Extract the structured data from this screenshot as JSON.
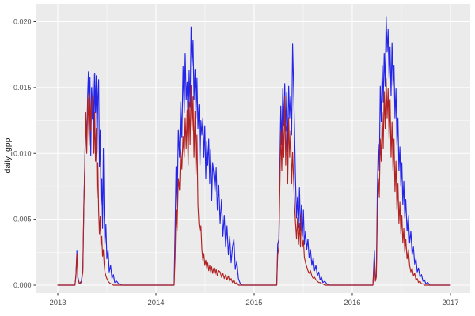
{
  "chart_data": {
    "type": "line",
    "title": "",
    "xlabel": "",
    "ylabel": "daily_gpp",
    "legend": "none",
    "grid": "ggplot2 gray panel, white major and minor gridlines",
    "x_ticks": [
      2013,
      2014,
      2015,
      2016,
      2017
    ],
    "x_tick_labels": [
      "2013",
      "2014",
      "2015",
      "2016",
      "2017"
    ],
    "y_ticks": [
      0.0,
      0.005,
      0.01,
      0.015,
      0.02
    ],
    "y_tick_labels": [
      "0.000",
      "0.005",
      "0.010",
      "0.015",
      "0.020"
    ],
    "xlim": [
      2012.782,
      2017.202
    ],
    "ylim": [
      -0.0006,
      0.02135
    ],
    "theme": {
      "panel_bg": "#EBEBEB",
      "grid_major": "#FFFFFF",
      "grid_minor": "#FFFFFF",
      "outer_bg": "#FFFFFF",
      "axis_text": "#4D4D4D",
      "axis_title": "#1A1A1A",
      "tick_mark": "#333333"
    },
    "series": [
      {
        "name": "gpp-series-blue",
        "color": "#2525E8",
        "column": 1
      },
      {
        "name": "gpp-series-firebrick",
        "color": "#B22222",
        "column": 2
      }
    ],
    "columns": [
      "year_decimal",
      "blue_daily_gpp",
      "firebrick_daily_gpp"
    ],
    "points": [
      [
        2013.0,
        0,
        0
      ],
      [
        2013.12,
        0,
        0
      ],
      [
        2013.175,
        0,
        0
      ],
      [
        2013.185,
        0.0008,
        0.0007
      ],
      [
        2013.195,
        0.0026,
        0.0024
      ],
      [
        2013.205,
        0.0006,
        0.0005
      ],
      [
        2013.22,
        0.0001,
        0.0001
      ],
      [
        2013.24,
        0.0003,
        0.0002
      ],
      [
        2013.255,
        0.0012,
        0.001
      ],
      [
        2013.265,
        0.006,
        0.0058
      ],
      [
        2013.275,
        0.0092,
        0.009
      ],
      [
        2013.285,
        0.0128,
        0.0131
      ],
      [
        2013.295,
        0.011,
        0.01
      ],
      [
        2013.305,
        0.0146,
        0.0142
      ],
      [
        2013.312,
        0.0162,
        0.0128
      ],
      [
        2013.32,
        0.0121,
        0.0106
      ],
      [
        2013.328,
        0.0158,
        0.0145
      ],
      [
        2013.336,
        0.0098,
        0.0117
      ],
      [
        2013.344,
        0.015,
        0.0136
      ],
      [
        2013.352,
        0.0126,
        0.0143
      ],
      [
        2013.36,
        0.016,
        0.0122
      ],
      [
        2013.368,
        0.0108,
        0.01
      ],
      [
        2013.376,
        0.0161,
        0.0131
      ],
      [
        2013.384,
        0.0131,
        0.0094
      ],
      [
        2013.392,
        0.0159,
        0.0119
      ],
      [
        2013.4,
        0.01,
        0.0066
      ],
      [
        2013.408,
        0.0143,
        0.0093
      ],
      [
        2013.416,
        0.0156,
        0.0057
      ],
      [
        2013.424,
        0.009,
        0.0039
      ],
      [
        2013.432,
        0.0118,
        0.0052
      ],
      [
        2013.44,
        0.0061,
        0.003
      ],
      [
        2013.448,
        0.0081,
        0.0037
      ],
      [
        2013.456,
        0.0043,
        0.0022
      ],
      [
        2013.464,
        0.0104,
        0.0027
      ],
      [
        2013.472,
        0.0054,
        0.0016
      ],
      [
        2013.48,
        0.0031,
        0.001
      ],
      [
        2013.49,
        0.0046,
        0.0007
      ],
      [
        2013.5,
        0.002,
        0.0005
      ],
      [
        2013.512,
        0.0027,
        0.0003
      ],
      [
        2013.524,
        0.001,
        0.0002
      ],
      [
        2013.538,
        0.0015,
        0.0001
      ],
      [
        2013.552,
        0.0005,
        0.0001
      ],
      [
        2013.566,
        0.0008,
        0.0
      ],
      [
        2013.58,
        0.0002,
        0
      ],
      [
        2013.6,
        0.0003,
        0
      ],
      [
        2013.62,
        0.0001,
        0
      ],
      [
        2013.65,
        0,
        0
      ],
      [
        2013.8,
        0,
        0
      ],
      [
        2014.0,
        0,
        0
      ],
      [
        2014.15,
        0,
        0
      ],
      [
        2014.185,
        0,
        0
      ],
      [
        2014.195,
        0.0042,
        0.0021
      ],
      [
        2014.205,
        0.009,
        0.0057
      ],
      [
        2014.215,
        0.0054,
        0.0041
      ],
      [
        2014.228,
        0.0118,
        0.0081
      ],
      [
        2014.24,
        0.0097,
        0.0072
      ],
      [
        2014.252,
        0.0139,
        0.0103
      ],
      [
        2014.264,
        0.0112,
        0.0088
      ],
      [
        2014.276,
        0.0166,
        0.0113
      ],
      [
        2014.288,
        0.0131,
        0.0097
      ],
      [
        2014.298,
        0.0176,
        0.0127
      ],
      [
        2014.308,
        0.0141,
        0.0104
      ],
      [
        2014.318,
        0.0154,
        0.0133
      ],
      [
        2014.328,
        0.0117,
        0.0091
      ],
      [
        2014.338,
        0.0163,
        0.0139
      ],
      [
        2014.348,
        0.0135,
        0.0107
      ],
      [
        2014.358,
        0.0196,
        0.0152
      ],
      [
        2014.368,
        0.0167,
        0.0117
      ],
      [
        2014.378,
        0.0186,
        0.0143
      ],
      [
        2014.388,
        0.0141,
        0.0097
      ],
      [
        2014.398,
        0.0164,
        0.0132
      ],
      [
        2014.408,
        0.0127,
        0.0084
      ],
      [
        2014.418,
        0.0157,
        0.0114
      ],
      [
        2014.428,
        0.0119,
        0.0061
      ],
      [
        2014.438,
        0.0137,
        0.0046
      ],
      [
        2014.448,
        0.0091,
        0.0041
      ],
      [
        2014.458,
        0.0125,
        0.0045
      ],
      [
        2014.468,
        0.0114,
        0.0027
      ],
      [
        2014.478,
        0.0127,
        0.0019
      ],
      [
        2014.488,
        0.0097,
        0.0024
      ],
      [
        2014.498,
        0.0121,
        0.0015
      ],
      [
        2014.508,
        0.0081,
        0.0019
      ],
      [
        2014.518,
        0.0109,
        0.0013
      ],
      [
        2014.528,
        0.0091,
        0.0017
      ],
      [
        2014.538,
        0.0111,
        0.0011
      ],
      [
        2014.548,
        0.0077,
        0.0015
      ],
      [
        2014.558,
        0.0103,
        0.001
      ],
      [
        2014.568,
        0.0064,
        0.0014
      ],
      [
        2014.578,
        0.0093,
        0.0009
      ],
      [
        2014.59,
        0.0084,
        0.0013
      ],
      [
        2014.602,
        0.0071,
        0.0008
      ],
      [
        2014.614,
        0.0089,
        0.0012
      ],
      [
        2014.626,
        0.0057,
        0.0007
      ],
      [
        2014.64,
        0.0076,
        0.0011
      ],
      [
        2014.654,
        0.0047,
        0.001
      ],
      [
        2014.668,
        0.0065,
        0.0006
      ],
      [
        2014.682,
        0.0037,
        0.0009
      ],
      [
        2014.696,
        0.0053,
        0.0005
      ],
      [
        2014.71,
        0.0029,
        0.0008
      ],
      [
        2014.724,
        0.0045,
        0.0004
      ],
      [
        2014.738,
        0.0023,
        0.0007
      ],
      [
        2014.752,
        0.0037,
        0.0003
      ],
      [
        2014.766,
        0.0017,
        0.0005
      ],
      [
        2014.78,
        0.0029,
        0.0002
      ],
      [
        2014.794,
        0.0035,
        0.0004
      ],
      [
        2014.808,
        0.0012,
        0.0001
      ],
      [
        2014.824,
        0.0018,
        0.0002
      ],
      [
        2014.84,
        0.0005,
        0.0
      ],
      [
        2014.86,
        0.0001,
        0
      ],
      [
        2014.88,
        0,
        0
      ],
      [
        2015.0,
        0,
        0
      ],
      [
        2015.18,
        0,
        0
      ],
      [
        2015.23,
        0,
        0
      ],
      [
        2015.24,
        0.0031,
        0.0023
      ],
      [
        2015.252,
        0.0035,
        0.0029
      ],
      [
        2015.262,
        0.0091,
        0.0074
      ],
      [
        2015.272,
        0.0136,
        0.0117
      ],
      [
        2015.282,
        0.0107,
        0.0087
      ],
      [
        2015.292,
        0.0149,
        0.0124
      ],
      [
        2015.302,
        0.0121,
        0.0097
      ],
      [
        2015.312,
        0.0153,
        0.0143
      ],
      [
        2015.322,
        0.0117,
        0.0091
      ],
      [
        2015.332,
        0.0146,
        0.0121
      ],
      [
        2015.342,
        0.0101,
        0.0077
      ],
      [
        2015.352,
        0.0151,
        0.0127
      ],
      [
        2015.362,
        0.0127,
        0.0097
      ],
      [
        2015.372,
        0.0143,
        0.0117
      ],
      [
        2015.382,
        0.0114,
        0.0077
      ],
      [
        2015.392,
        0.0183,
        0.0101
      ],
      [
        2015.402,
        0.0151,
        0.0081
      ],
      [
        2015.412,
        0.0117,
        0.0061
      ],
      [
        2015.422,
        0.0079,
        0.0047
      ],
      [
        2015.432,
        0.0051,
        0.0035
      ],
      [
        2015.442,
        0.0067,
        0.0051
      ],
      [
        2015.452,
        0.0044,
        0.0031
      ],
      [
        2015.462,
        0.0074,
        0.0047
      ],
      [
        2015.472,
        0.0041,
        0.0029
      ],
      [
        2015.482,
        0.0061,
        0.0054
      ],
      [
        2015.492,
        0.0037,
        0.0029
      ],
      [
        2015.502,
        0.0057,
        0.0034
      ],
      [
        2015.512,
        0.0031,
        0.0021
      ],
      [
        2015.524,
        0.0041,
        0.0017
      ],
      [
        2015.536,
        0.0027,
        0.0014
      ],
      [
        2015.548,
        0.0035,
        0.0011
      ],
      [
        2015.56,
        0.0021,
        0.0009
      ],
      [
        2015.574,
        0.0027,
        0.0011
      ],
      [
        2015.588,
        0.0015,
        0.0007
      ],
      [
        2015.602,
        0.0021,
        0.0005
      ],
      [
        2015.616,
        0.0011,
        0.0006
      ],
      [
        2015.63,
        0.0015,
        0.0004
      ],
      [
        2015.644,
        0.0007,
        0.0003
      ],
      [
        2015.658,
        0.001,
        0.0002
      ],
      [
        2015.672,
        0.0004,
        0.0002
      ],
      [
        2015.686,
        0.0006,
        0.0001
      ],
      [
        2015.7,
        0.0002,
        0.0001
      ],
      [
        2015.72,
        0.0003,
        0.0
      ],
      [
        2015.74,
        0.0001,
        0
      ],
      [
        2015.76,
        0,
        0
      ],
      [
        2015.9,
        0,
        0
      ],
      [
        2016.1,
        0,
        0
      ],
      [
        2016.21,
        0,
        0
      ],
      [
        2016.225,
        0.0026,
        0.0019
      ],
      [
        2016.235,
        0.0004,
        0.0003
      ],
      [
        2016.245,
        0.0008,
        0.0006
      ],
      [
        2016.255,
        0.0071,
        0.0051
      ],
      [
        2016.265,
        0.0107,
        0.0081
      ],
      [
        2016.275,
        0.0087,
        0.0067
      ],
      [
        2016.285,
        0.0151,
        0.0111
      ],
      [
        2016.295,
        0.0124,
        0.0094
      ],
      [
        2016.305,
        0.0167,
        0.0131
      ],
      [
        2016.315,
        0.0139,
        0.0104
      ],
      [
        2016.325,
        0.0176,
        0.0147
      ],
      [
        2016.335,
        0.0151,
        0.0119
      ],
      [
        2016.345,
        0.0204,
        0.0157
      ],
      [
        2016.355,
        0.0177,
        0.0127
      ],
      [
        2016.365,
        0.0194,
        0.0149
      ],
      [
        2016.375,
        0.0157,
        0.0111
      ],
      [
        2016.385,
        0.0181,
        0.0141
      ],
      [
        2016.395,
        0.0144,
        0.0097
      ],
      [
        2016.405,
        0.0184,
        0.0124
      ],
      [
        2016.415,
        0.0151,
        0.0087
      ],
      [
        2016.425,
        0.0167,
        0.0111
      ],
      [
        2016.435,
        0.0127,
        0.0071
      ],
      [
        2016.445,
        0.0149,
        0.0094
      ],
      [
        2016.455,
        0.0107,
        0.0057
      ],
      [
        2016.465,
        0.0127,
        0.0077
      ],
      [
        2016.475,
        0.0087,
        0.0047
      ],
      [
        2016.485,
        0.0105,
        0.0063
      ],
      [
        2016.495,
        0.0075,
        0.0039
      ],
      [
        2016.505,
        0.0093,
        0.0053
      ],
      [
        2016.515,
        0.0061,
        0.0032
      ],
      [
        2016.525,
        0.0079,
        0.0043
      ],
      [
        2016.535,
        0.0051,
        0.0025
      ],
      [
        2016.545,
        0.0065,
        0.0035
      ],
      [
        2016.558,
        0.0041,
        0.002
      ],
      [
        2016.571,
        0.0053,
        0.0027
      ],
      [
        2016.584,
        0.0032,
        0.0015
      ],
      [
        2016.597,
        0.0041,
        0.001
      ],
      [
        2016.61,
        0.0023,
        0.0013
      ],
      [
        2016.623,
        0.0029,
        0.0007
      ],
      [
        2016.636,
        0.0016,
        0.0009
      ],
      [
        2016.649,
        0.002,
        0.0004
      ],
      [
        2016.662,
        0.001,
        0.0005
      ],
      [
        2016.675,
        0.0013,
        0.0002
      ],
      [
        2016.69,
        0.0006,
        0.0003
      ],
      [
        2016.705,
        0.0008,
        0.0001
      ],
      [
        2016.72,
        0.0003,
        0.0001
      ],
      [
        2016.735,
        0.0004,
        0.0
      ],
      [
        2016.75,
        0.0001,
        0
      ],
      [
        2016.77,
        0.0002,
        0
      ],
      [
        2016.79,
        0,
        0
      ],
      [
        2016.85,
        0,
        0
      ],
      [
        2016.93,
        0,
        0
      ],
      [
        2017.0,
        0,
        0
      ]
    ]
  }
}
